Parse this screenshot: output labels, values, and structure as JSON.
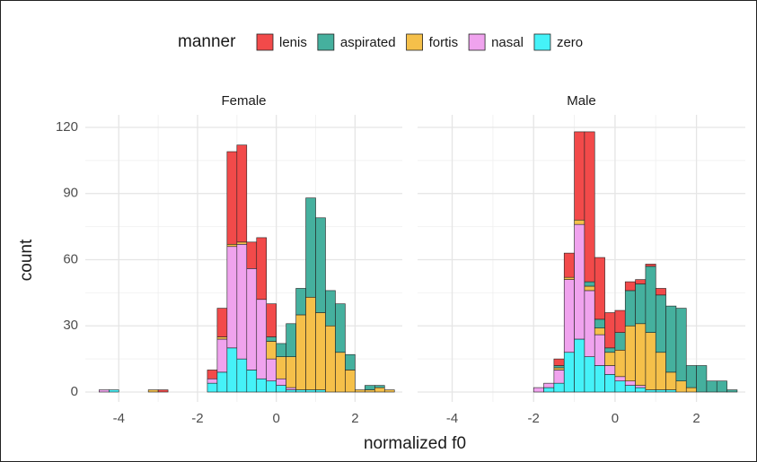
{
  "chart_data": [
    {
      "type": "histogram",
      "title": "Female",
      "xlabel": "normalized f0",
      "ylabel": "count",
      "legend_title": "manner",
      "bins": [
        -4.5,
        -4.25,
        -4.0,
        -3.75,
        -3.5,
        -3.25,
        -3.0,
        -2.75,
        -2.5,
        -2.25,
        -2.0,
        -1.75,
        -1.5,
        -1.25,
        -1.0,
        -0.75,
        -0.5,
        -0.25,
        0,
        0.25,
        0.5,
        0.75,
        1.0,
        1.25,
        1.5,
        1.75,
        2.0,
        2.25,
        2.5,
        2.75,
        3.0
      ],
      "xlim": [
        -4.85,
        3.2
      ],
      "xticks": [
        -4,
        -2,
        0,
        2
      ],
      "ylim": [
        0,
        120
      ],
      "yticks": [
        0,
        30,
        60,
        90,
        120
      ],
      "grid": true,
      "stacked": true,
      "series": [
        {
          "name": "lenis",
          "color": "#f24a4a",
          "values": [
            0,
            0,
            0,
            0,
            0,
            0,
            1,
            0,
            0,
            0,
            0,
            4,
            13,
            42,
            44,
            12,
            28,
            15,
            0,
            0,
            0,
            0,
            0,
            0,
            0,
            0,
            0,
            0,
            0,
            0
          ]
        },
        {
          "name": "aspirated",
          "color": "#45b09e",
          "values": [
            0,
            0,
            0,
            0,
            0,
            0,
            0,
            0,
            0,
            0,
            0,
            0,
            0,
            0,
            0,
            0,
            0,
            2,
            6,
            15,
            12,
            45,
            43,
            16,
            22,
            7,
            0,
            2,
            1,
            0
          ]
        },
        {
          "name": "fortis",
          "color": "#f5c04a",
          "values": [
            0,
            0,
            0,
            0,
            0,
            1,
            0,
            0,
            0,
            0,
            0,
            0,
            1,
            1,
            1,
            0,
            0,
            8,
            10,
            14,
            34,
            42,
            35,
            30,
            18,
            10,
            1,
            1,
            2,
            1
          ]
        },
        {
          "name": "nasal",
          "color": "#f0a3ee",
          "values": [
            1,
            0,
            0,
            0,
            0,
            0,
            0,
            0,
            0,
            0,
            0,
            2,
            15,
            46,
            52,
            46,
            36,
            10,
            3,
            1,
            0,
            0,
            0,
            0,
            0,
            0,
            0,
            0,
            0,
            0
          ]
        },
        {
          "name": "zero",
          "color": "#45f2f8",
          "values": [
            0,
            1,
            0,
            0,
            0,
            0,
            0,
            0,
            0,
            0,
            0,
            4,
            9,
            20,
            15,
            10,
            6,
            5,
            3,
            1,
            1,
            1,
            1,
            0,
            0,
            0,
            0,
            0,
            0,
            0
          ]
        }
      ]
    },
    {
      "type": "histogram",
      "title": "Male",
      "bins": [
        -4.5,
        -4.25,
        -4.0,
        -3.75,
        -3.5,
        -3.25,
        -3.0,
        -2.75,
        -2.5,
        -2.25,
        -2.0,
        -1.75,
        -1.5,
        -1.25,
        -1.0,
        -0.75,
        -0.5,
        -0.25,
        0,
        0.25,
        0.5,
        0.75,
        1.0,
        1.25,
        1.5,
        1.75,
        2.0,
        2.25,
        2.5,
        2.75,
        3.0
      ],
      "xlim": [
        -4.85,
        3.2
      ],
      "xticks": [
        -4,
        -2,
        0,
        2
      ],
      "ylim": [
        0,
        120
      ],
      "yticks": [
        0,
        30,
        60,
        90,
        120
      ],
      "grid": true,
      "stacked": true,
      "series": [
        {
          "color": "#f24a4a",
          "values": [
            0,
            0,
            0,
            0,
            0,
            0,
            0,
            0,
            0,
            0,
            0,
            0,
            3,
            11,
            40,
            68,
            28,
            16,
            10,
            4,
            2,
            1,
            3,
            0,
            0,
            0,
            0,
            0,
            0,
            0
          ]
        },
        {
          "color": "#45b09e",
          "values": [
            0,
            0,
            0,
            0,
            0,
            0,
            0,
            0,
            0,
            0,
            0,
            0,
            1,
            0,
            0,
            2,
            4,
            2,
            8,
            16,
            18,
            30,
            26,
            30,
            33,
            10,
            12,
            5,
            5,
            1
          ]
        },
        {
          "color": "#f5c04a",
          "values": [
            0,
            0,
            0,
            0,
            0,
            0,
            0,
            0,
            0,
            0,
            0,
            0,
            1,
            1,
            2,
            2,
            3,
            6,
            12,
            25,
            28,
            26,
            17,
            8,
            5,
            2,
            0,
            0,
            0,
            0
          ]
        },
        {
          "color": "#f0a3ee",
          "values": [
            0,
            0,
            0,
            0,
            0,
            0,
            0,
            0,
            0,
            0,
            2,
            2,
            6,
            33,
            52,
            30,
            14,
            4,
            2,
            2,
            1,
            0,
            0,
            0,
            0,
            0,
            0,
            0,
            0,
            0
          ]
        },
        {
          "color": "#45f2f8",
          "values": [
            0,
            0,
            0,
            0,
            0,
            0,
            0,
            0,
            0,
            0,
            0,
            2,
            4,
            18,
            24,
            16,
            12,
            8,
            5,
            3,
            2,
            1,
            1,
            1,
            0,
            0,
            0,
            0,
            0,
            0
          ]
        }
      ]
    }
  ]
}
